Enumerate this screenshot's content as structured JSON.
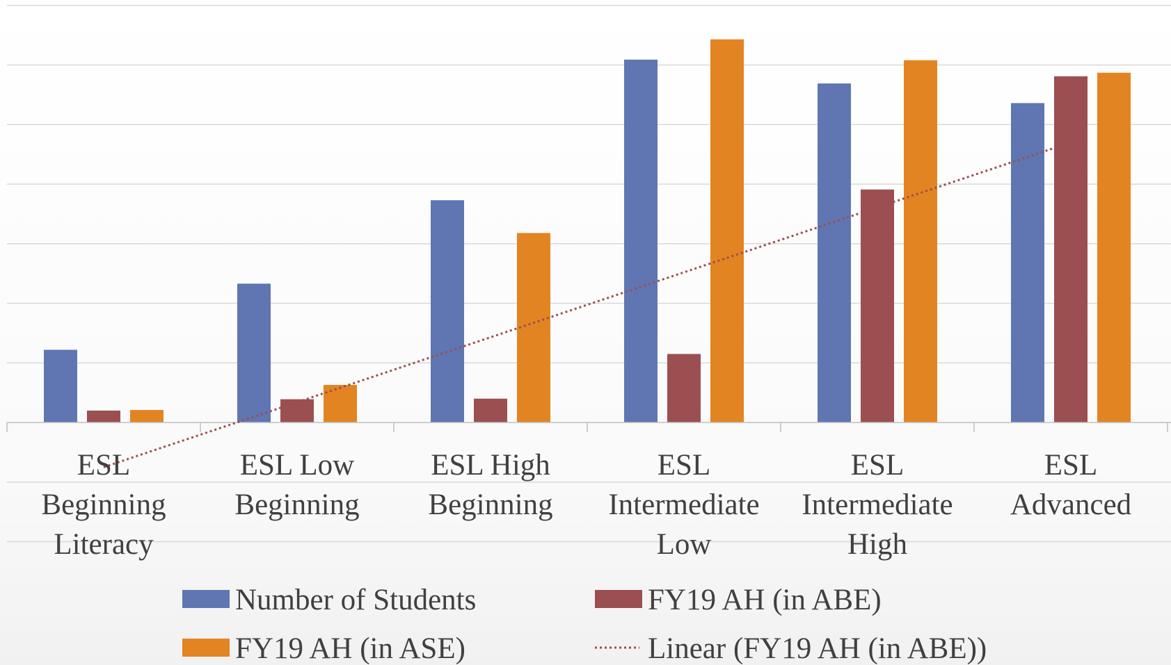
{
  "chart_data": {
    "type": "bar",
    "title": "",
    "xlabel": "",
    "ylabel": "",
    "ylim": [
      0,
      700
    ],
    "grid": true,
    "categories": [
      [
        "ESL",
        "Beginning",
        "Literacy"
      ],
      [
        "ESL Low",
        "Beginning"
      ],
      [
        "ESL High",
        "Beginning"
      ],
      [
        "ESL",
        "Intermediate",
        "Low"
      ],
      [
        "ESL",
        "Intermediate",
        "High"
      ],
      [
        "ESL",
        "Advanced"
      ]
    ],
    "series": [
      {
        "name": "Number of Students",
        "color": "#5f76b3",
        "values": [
          122,
          233,
          373,
          609,
          569,
          536
        ]
      },
      {
        "name": "FY19 AH (in ABE)",
        "color": "#9b4f50",
        "values": [
          20,
          39,
          40,
          115,
          391,
          581
        ]
      },
      {
        "name": "FY19 AH (in ASE)",
        "color": "#e38422",
        "values": [
          21,
          63,
          318,
          643,
          608,
          587
        ]
      }
    ],
    "trendline": {
      "name": "Linear (FY19 AH (in ABE))",
      "type": "linear",
      "of_series": "FY19 AH (in ABE)",
      "color": "#9b4f50",
      "values": [
        -75,
        30,
        135,
        240,
        345,
        470
      ]
    },
    "legend": {
      "position": "bottom",
      "entries": [
        {
          "label": "Number of Students",
          "kind": "bar",
          "color": "#5f76b3"
        },
        {
          "label": "FY19 AH (in ABE)",
          "kind": "bar",
          "color": "#9b4f50"
        },
        {
          "label": "FY19 AH (in ASE)",
          "kind": "bar",
          "color": "#e38422"
        },
        {
          "label": "Linear (FY19 AH (in ABE))",
          "kind": "dotted-line",
          "color": "#9b4f50"
        }
      ]
    }
  }
}
